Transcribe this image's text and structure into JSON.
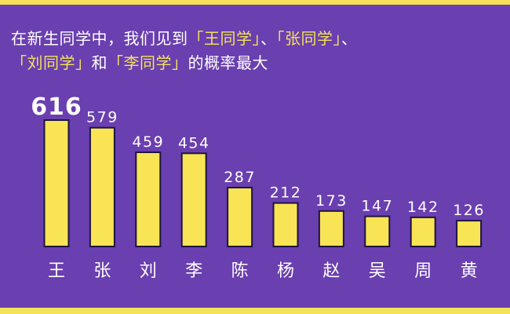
{
  "title": {
    "line1_pre": "在新生同学中，我们见到",
    "line1_h1": "「王同学」",
    "line1_sep1": "、",
    "line1_h2": "「张同学」",
    "line1_sep2": "、",
    "line2_h3": "「刘同学」",
    "line2_and": "和",
    "line2_h4": "「李同学」",
    "line2_post": "的概率最大"
  },
  "colors": {
    "background": "#6a3fb0",
    "bar_fill": "#f8e455",
    "bar_stroke": "#1e1440",
    "accent_text": "#f3e25a"
  },
  "chart_data": {
    "type": "bar",
    "categories": [
      "王",
      "张",
      "刘",
      "李",
      "陈",
      "杨",
      "赵",
      "吴",
      "周",
      "黄"
    ],
    "values": [
      616,
      579,
      459,
      454,
      287,
      212,
      173,
      147,
      142,
      126
    ],
    "title": "",
    "xlabel": "",
    "ylabel": "",
    "ylim": [
      0,
      616
    ],
    "grid": false,
    "legend": "none"
  }
}
